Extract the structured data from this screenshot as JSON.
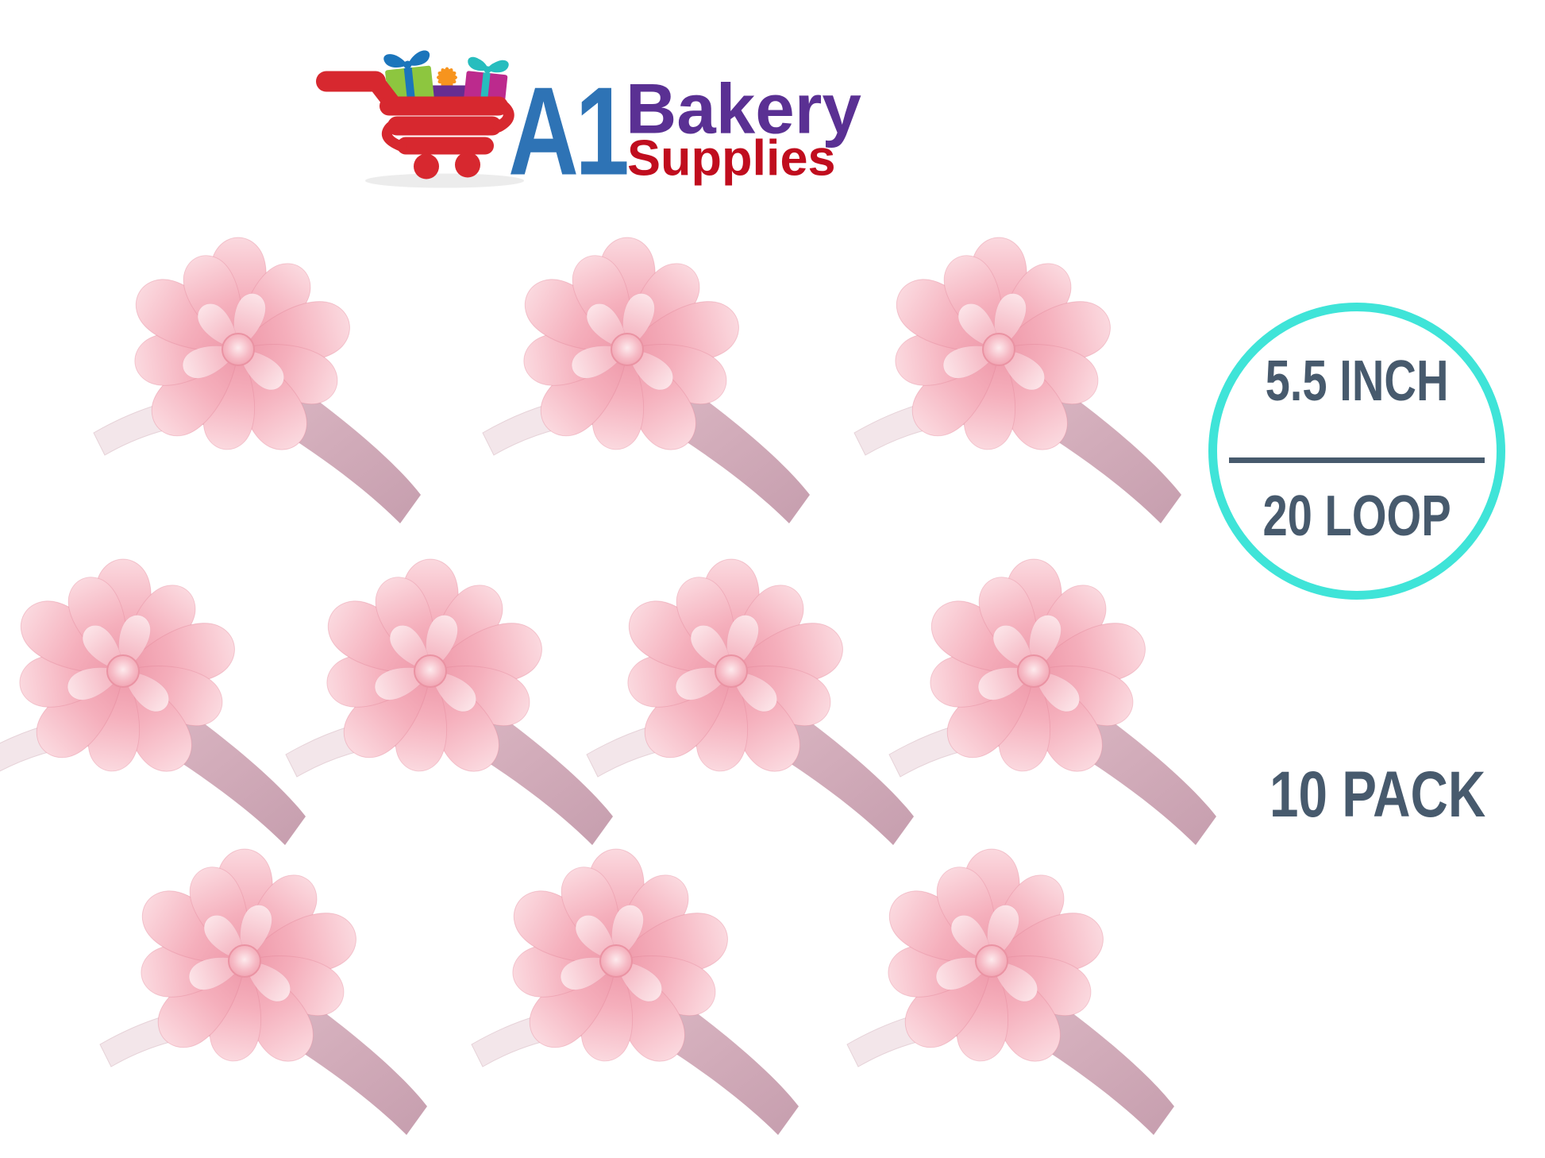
{
  "brand": {
    "a1": "A1",
    "bakery": "Bakery",
    "supplies": "Supplies"
  },
  "badge": {
    "size_label": "5.5 INCH",
    "loop_label": "20 LOOP"
  },
  "pack_label": "10 PACK",
  "bows": {
    "count": 10,
    "rows": [
      3,
      4,
      3
    ],
    "color_name": "pink"
  },
  "icons": {
    "logo_icon": "shopping-cart-with-gifts-icon"
  },
  "colors": {
    "badge_ring": "#3fe4d8",
    "badge_text": "#475a6d",
    "pack_text": "#475a6d",
    "logo_a1_blue": "#2e73b5",
    "logo_bakery_purple": "#5a3093",
    "logo_supplies_red": "#c00d1e",
    "cart_red": "#d7282f",
    "gift_green": "#8dc63f",
    "gift_blue": "#1b75bb",
    "gift_orange": "#f7941e",
    "gift_purple": "#662d91",
    "gift_magenta": "#bc2a8d",
    "gift_teal": "#27bdbe",
    "bow_pink": "#f5b0bc",
    "bow_highlight": "#fbd9df",
    "bow_shadow": "#ee97a8",
    "ribbon_tail": "#d3abb8"
  }
}
